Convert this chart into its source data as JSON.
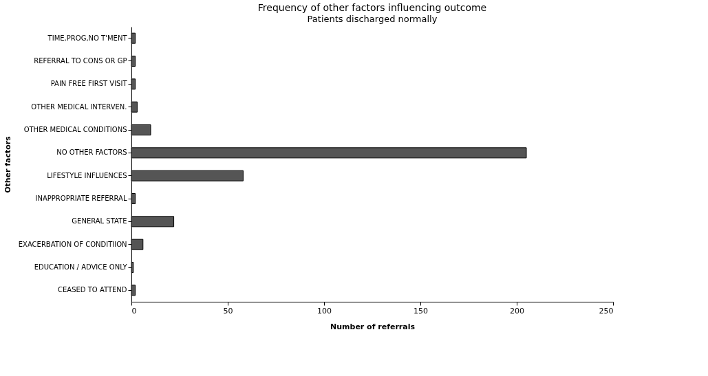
{
  "chart_data": {
    "type": "bar",
    "orientation": "horizontal",
    "title": "Frequency of other factors influencing outcome",
    "subtitle": "Patients discharged normally",
    "xlabel": "Number of referrals",
    "ylabel": "Other factors",
    "categories": [
      "TIME,PROG,NO T'MENT",
      "REFERRAL TO  CONS OR GP",
      "PAIN FREE FIRST VISIT",
      "OTHER MEDICAL INTERVEN.",
      "OTHER MEDICAL CONDITIONS",
      "NO OTHER FACTORS",
      "LIFESTYLE INFLUENCES",
      "INAPPROPRIATE  REFERRAL",
      "GENERAL STATE",
      "EXACERBATION OF CONDITIION",
      "EDUCATION / ADVICE ONLY",
      "CEASED TO ATTEND"
    ],
    "values": [
      2,
      2,
      2,
      3,
      10,
      205,
      58,
      2,
      22,
      6,
      1,
      2
    ],
    "color": "#555555",
    "xlim": [
      0,
      250
    ],
    "xticks": [
      0,
      50,
      100,
      150,
      200,
      250
    ],
    "grid": false
  }
}
